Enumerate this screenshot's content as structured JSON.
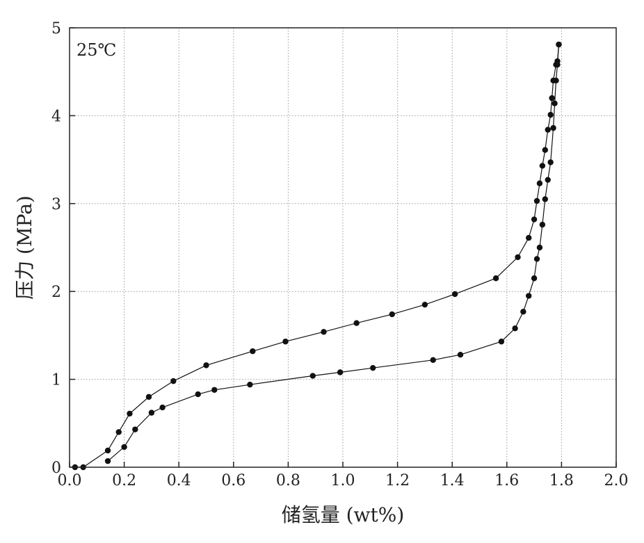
{
  "chart_data": {
    "type": "line",
    "title": "",
    "annotation": "25℃",
    "xlabel": "储氢量 (wt%)",
    "ylabel": "压力 (MPa)",
    "xlim": [
      0.0,
      2.0
    ],
    "ylim": [
      0,
      5
    ],
    "xticks": [
      0.0,
      0.2,
      0.4,
      0.6,
      0.8,
      1.0,
      1.2,
      1.4,
      1.6,
      1.8,
      2.0
    ],
    "xtick_labels": [
      "0.0",
      "0.2",
      "0.4",
      "0.6",
      "0.8",
      "1.0",
      "1.2",
      "1.4",
      "1.6",
      "1.8",
      "2.0"
    ],
    "yticks": [
      0,
      1,
      2,
      3,
      4,
      5
    ],
    "ytick_labels": [
      "0",
      "1",
      "2",
      "3",
      "4",
      "5"
    ],
    "grid": true,
    "series": [
      {
        "color": "#111111",
        "x": [
          0.02,
          0.05,
          0.14,
          0.18,
          0.22,
          0.29,
          0.38,
          0.5,
          0.67,
          0.79,
          0.93,
          1.05,
          1.18,
          1.3,
          1.41,
          1.56,
          1.64,
          1.68,
          1.7,
          1.71,
          1.72,
          1.73,
          1.74,
          1.75,
          1.76,
          1.765,
          1.77,
          1.78,
          1.785,
          1.79
        ],
        "y": [
          0.0,
          0.0,
          0.19,
          0.4,
          0.61,
          0.8,
          0.98,
          1.16,
          1.32,
          1.43,
          1.54,
          1.64,
          1.74,
          1.85,
          1.97,
          2.15,
          2.39,
          2.61,
          2.82,
          3.03,
          3.23,
          3.43,
          3.61,
          3.84,
          4.01,
          4.2,
          4.4,
          4.58,
          4.62,
          4.81
        ]
      },
      {
        "color": "#111111",
        "x": [
          0.14,
          0.2,
          0.24,
          0.3,
          0.34,
          0.47,
          0.53,
          0.66,
          0.89,
          0.99,
          1.11,
          1.33,
          1.43,
          1.58,
          1.63,
          1.66,
          1.68,
          1.7,
          1.71,
          1.72,
          1.73,
          1.74,
          1.75,
          1.76,
          1.77,
          1.775,
          1.78,
          1.785,
          1.79
        ],
        "y": [
          0.07,
          0.23,
          0.43,
          0.62,
          0.68,
          0.83,
          0.88,
          0.94,
          1.04,
          1.08,
          1.13,
          1.22,
          1.28,
          1.43,
          1.58,
          1.77,
          1.95,
          2.15,
          2.37,
          2.5,
          2.76,
          3.05,
          3.27,
          3.47,
          3.86,
          4.14,
          4.4,
          4.58,
          4.81
        ]
      }
    ]
  }
}
